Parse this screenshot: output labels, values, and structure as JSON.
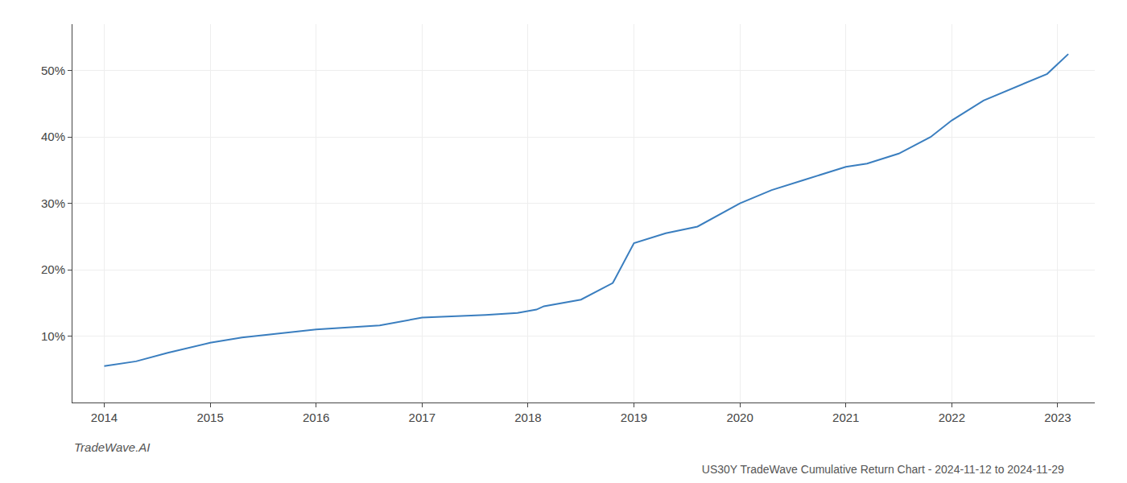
{
  "chart_data": {
    "type": "line",
    "title": "US30Y TradeWave Cumulative Return Chart - 2024-11-12 to 2024-11-29",
    "annotations": [
      "TradeWave.AI"
    ],
    "x": [
      2014.0,
      2014.3,
      2014.6,
      2015.0,
      2015.3,
      2015.7,
      2016.0,
      2016.3,
      2016.6,
      2017.0,
      2017.3,
      2017.6,
      2017.9,
      2018.0,
      2018.08,
      2018.15,
      2018.5,
      2018.8,
      2019.0,
      2019.3,
      2019.6,
      2020.0,
      2020.3,
      2020.6,
      2021.0,
      2021.2,
      2021.5,
      2021.8,
      2022.0,
      2022.3,
      2022.6,
      2022.9,
      2023.0,
      2023.1
    ],
    "values": [
      5.5,
      6.2,
      7.5,
      9.0,
      9.8,
      10.5,
      11.0,
      11.3,
      11.6,
      12.8,
      13.0,
      13.2,
      13.5,
      13.8,
      14.0,
      14.5,
      15.5,
      18.0,
      24.0,
      25.5,
      26.5,
      30.0,
      32.0,
      33.5,
      35.5,
      36.0,
      37.5,
      40.0,
      42.5,
      45.5,
      47.5,
      49.5,
      51.0,
      52.5
    ],
    "color": "#3a7ebf",
    "xlim": [
      2013.7,
      2023.35
    ],
    "ylim": [
      0,
      57
    ],
    "xticks": [
      2014,
      2015,
      2016,
      2017,
      2018,
      2019,
      2020,
      2021,
      2022,
      2023
    ],
    "yticks": [
      {
        "value": 10,
        "label": "10%"
      },
      {
        "value": 20,
        "label": "20%"
      },
      {
        "value": 30,
        "label": "30%"
      },
      {
        "value": 40,
        "label": "40%"
      },
      {
        "value": 50,
        "label": "50%"
      }
    ],
    "grid": true
  }
}
